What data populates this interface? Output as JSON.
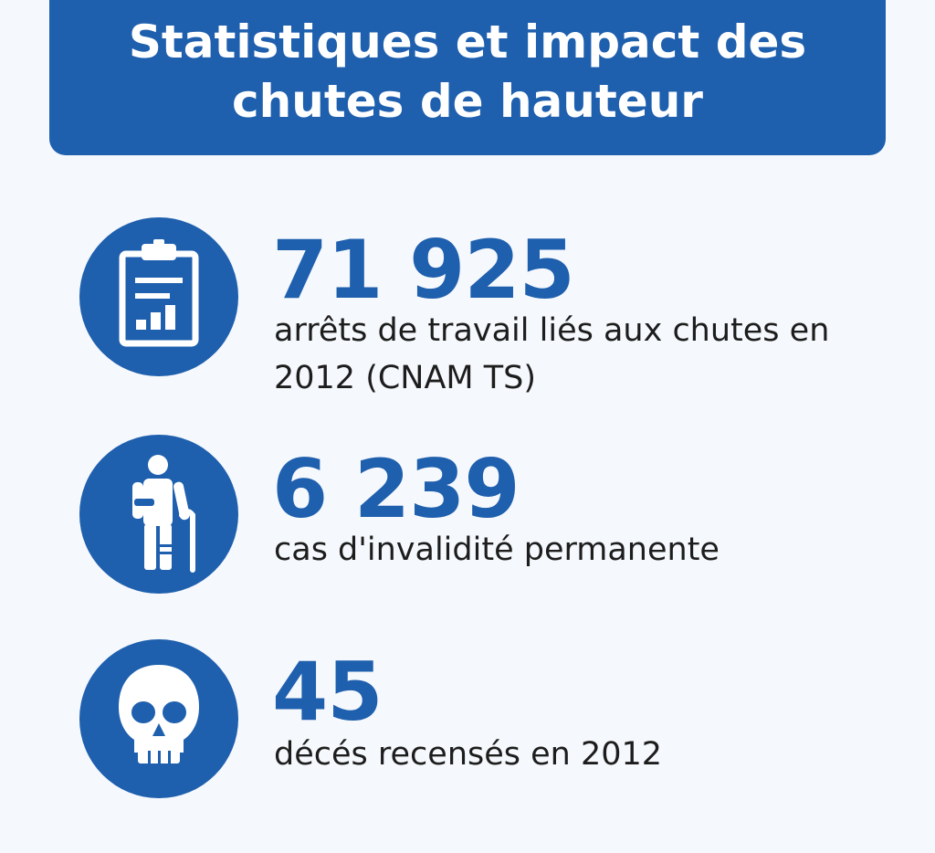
{
  "title": "Statistiques et impact des chutes de hauteur",
  "colors": {
    "primary": "#1e5fae",
    "background": "#f5f8fc",
    "text": "#1d1d1d"
  },
  "stats": [
    {
      "icon": "clipboard-chart-icon",
      "number": "71 925",
      "description": "arrêts de travail liés aux chutes en 2012 (CNAM TS)"
    },
    {
      "icon": "injured-person-icon",
      "number": "6 239",
      "description": "cas d'invalidité permanente"
    },
    {
      "icon": "skull-icon",
      "number": "45",
      "description": "décés recensés en 2012"
    }
  ]
}
